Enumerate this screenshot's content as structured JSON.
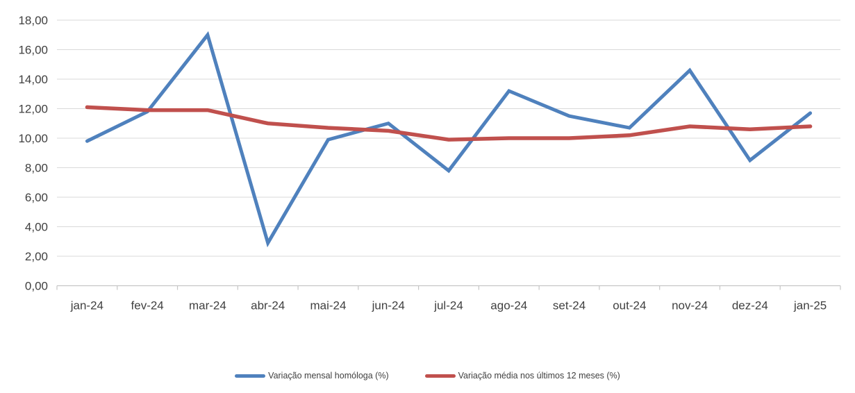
{
  "chart_data": {
    "type": "line",
    "categories": [
      "jan-24",
      "fev-24",
      "mar-24",
      "abr-24",
      "mai-24",
      "jun-24",
      "jul-24",
      "ago-24",
      "set-24",
      "out-24",
      "nov-24",
      "dez-24",
      "jan-25"
    ],
    "series": [
      {
        "name": "Variação mensal homóloga (%)",
        "color": "#4F81BD",
        "values": [
          9.8,
          11.8,
          17.0,
          2.9,
          9.9,
          11.0,
          7.8,
          13.2,
          11.5,
          10.7,
          14.6,
          8.5,
          11.7
        ]
      },
      {
        "name": "Variação média nos últimos 12 meses (%)",
        "color": "#C0504D",
        "values": [
          12.1,
          11.9,
          11.9,
          11.0,
          10.7,
          10.5,
          9.9,
          10.0,
          10.0,
          10.2,
          10.8,
          10.6,
          10.8
        ]
      }
    ],
    "title": "",
    "xlabel": "",
    "ylabel": "",
    "ylim": [
      0,
      18
    ],
    "ytick_step": 2,
    "ytick_labels": [
      "0,00",
      "2,00",
      "4,00",
      "6,00",
      "8,00",
      "10,00",
      "12,00",
      "14,00",
      "16,00",
      "18,00"
    ],
    "grid": true,
    "legend_position": "bottom"
  },
  "colors": {
    "gridline": "#D9D9D9",
    "axis_line": "#C6C6C6",
    "tick_mark": "#C6C6C6",
    "axis_label": "#404040"
  }
}
